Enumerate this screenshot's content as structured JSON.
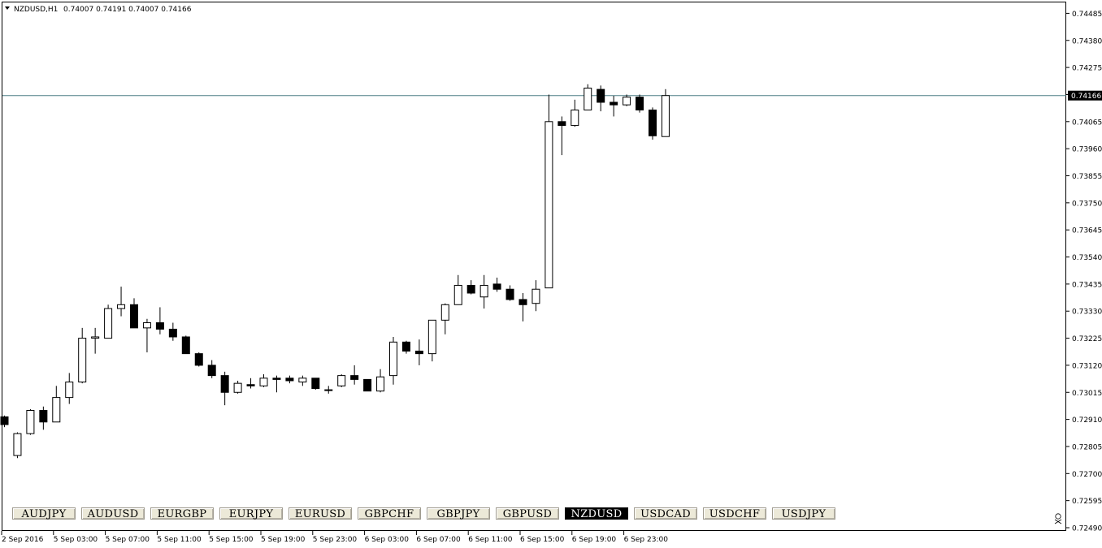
{
  "chart_header": {
    "symbol_timeframe": "NZDUSD,H1",
    "ohlc": "0.74007 0.74191 0.74007 0.74166"
  },
  "current_price_label": "0.74166",
  "symbol_buttons": [
    {
      "label": "AUDJPY",
      "active": false
    },
    {
      "label": "AUDUSD",
      "active": false
    },
    {
      "label": "EURGBP",
      "active": false
    },
    {
      "label": "EURJPY",
      "active": false
    },
    {
      "label": "EURUSD",
      "active": false
    },
    {
      "label": "GBPCHF",
      "active": false
    },
    {
      "label": "GBPJPY",
      "active": false
    },
    {
      "label": "GBPUSD",
      "active": false
    },
    {
      "label": "NZDUSD",
      "active": true
    },
    {
      "label": "USDCAD",
      "active": false
    },
    {
      "label": "USDCHF",
      "active": false
    },
    {
      "label": "USDJPY",
      "active": false
    }
  ],
  "colors": {
    "bull_fill": "#ffffff",
    "bear_fill": "#000000",
    "outline": "#000000",
    "price_line": "#4f7f86",
    "active_button": "#000000",
    "button_bg": "#ece9d8"
  },
  "chart_data": {
    "type": "candlestick",
    "title": "NZDUSD,H1",
    "grid": false,
    "current_price": 0.74166,
    "ylim": [
      0.7249,
      0.7454
    ],
    "y_ticks": [
      0.74485,
      0.7438,
      0.74275,
      0.7417,
      0.74065,
      0.7396,
      0.73855,
      0.7375,
      0.73645,
      0.7354,
      0.73435,
      0.7333,
      0.73225,
      0.7312,
      0.73015,
      0.7291,
      0.72805,
      0.727,
      0.72595,
      0.7249
    ],
    "y_tick_labels": [
      "0.74485",
      "0.74380",
      "0.74275",
      "0.74170",
      "0.74065",
      "0.73960",
      "0.73855",
      "0.73750",
      "0.73645",
      "0.73540",
      "0.73435",
      "0.73330",
      "0.73225",
      "0.73120",
      "0.73015",
      "0.72910",
      "0.72805",
      "0.72700",
      "0.72595",
      "0.72490"
    ],
    "x_tick_labels": [
      {
        "bar": 0,
        "label": "2 Sep 2016"
      },
      {
        "bar": 4,
        "label": "5 Sep 03:00"
      },
      {
        "bar": 8,
        "label": "5 Sep 07:00"
      },
      {
        "bar": 12,
        "label": "5 Sep 11:00"
      },
      {
        "bar": 16,
        "label": "5 Sep 15:00"
      },
      {
        "bar": 20,
        "label": "5 Sep 19:00"
      },
      {
        "bar": 24,
        "label": "5 Sep 23:00"
      },
      {
        "bar": 28,
        "label": "6 Sep 03:00"
      },
      {
        "bar": 32,
        "label": "6 Sep 07:00"
      },
      {
        "bar": 36,
        "label": "6 Sep 11:00"
      },
      {
        "bar": 40,
        "label": "6 Sep 15:00"
      },
      {
        "bar": 44,
        "label": "6 Sep 19:00"
      },
      {
        "bar": 48,
        "label": "6 Sep 23:00"
      }
    ],
    "candles": [
      {
        "o": 0.7292,
        "h": 0.72925,
        "l": 0.7288,
        "c": 0.7289
      },
      {
        "o": 0.7277,
        "h": 0.7286,
        "l": 0.7276,
        "c": 0.72855
      },
      {
        "o": 0.72855,
        "h": 0.7295,
        "l": 0.7285,
        "c": 0.72945
      },
      {
        "o": 0.72945,
        "h": 0.7296,
        "l": 0.7287,
        "c": 0.729
      },
      {
        "o": 0.729,
        "h": 0.7304,
        "l": 0.729,
        "c": 0.72995
      },
      {
        "o": 0.72995,
        "h": 0.7309,
        "l": 0.7297,
        "c": 0.73055
      },
      {
        "o": 0.73055,
        "h": 0.73265,
        "l": 0.7305,
        "c": 0.73225
      },
      {
        "o": 0.73225,
        "h": 0.73265,
        "l": 0.73165,
        "c": 0.7323
      },
      {
        "o": 0.73225,
        "h": 0.73355,
        "l": 0.73225,
        "c": 0.7334
      },
      {
        "o": 0.7334,
        "h": 0.73425,
        "l": 0.7331,
        "c": 0.73355
      },
      {
        "o": 0.73355,
        "h": 0.7338,
        "l": 0.73265,
        "c": 0.73265
      },
      {
        "o": 0.73265,
        "h": 0.733,
        "l": 0.7317,
        "c": 0.73285
      },
      {
        "o": 0.73285,
        "h": 0.73345,
        "l": 0.7324,
        "c": 0.7326
      },
      {
        "o": 0.7326,
        "h": 0.73285,
        "l": 0.73215,
        "c": 0.7323
      },
      {
        "o": 0.7323,
        "h": 0.73235,
        "l": 0.73165,
        "c": 0.73165
      },
      {
        "o": 0.73165,
        "h": 0.7317,
        "l": 0.73115,
        "c": 0.7312
      },
      {
        "o": 0.7312,
        "h": 0.7314,
        "l": 0.7307,
        "c": 0.7308
      },
      {
        "o": 0.7308,
        "h": 0.73095,
        "l": 0.72965,
        "c": 0.73015
      },
      {
        "o": 0.73015,
        "h": 0.7306,
        "l": 0.7301,
        "c": 0.7305
      },
      {
        "o": 0.73045,
        "h": 0.7307,
        "l": 0.7303,
        "c": 0.7304
      },
      {
        "o": 0.7304,
        "h": 0.73085,
        "l": 0.73035,
        "c": 0.7307
      },
      {
        "o": 0.7307,
        "h": 0.7308,
        "l": 0.73015,
        "c": 0.73065
      },
      {
        "o": 0.7307,
        "h": 0.7308,
        "l": 0.7305,
        "c": 0.7306
      },
      {
        "o": 0.73055,
        "h": 0.7308,
        "l": 0.7304,
        "c": 0.7307
      },
      {
        "o": 0.7307,
        "h": 0.7307,
        "l": 0.73025,
        "c": 0.7303
      },
      {
        "o": 0.73025,
        "h": 0.7304,
        "l": 0.7301,
        "c": 0.73025
      },
      {
        "o": 0.7304,
        "h": 0.73085,
        "l": 0.73035,
        "c": 0.7308
      },
      {
        "o": 0.7308,
        "h": 0.7312,
        "l": 0.73045,
        "c": 0.73065
      },
      {
        "o": 0.73065,
        "h": 0.73065,
        "l": 0.7302,
        "c": 0.7302
      },
      {
        "o": 0.7302,
        "h": 0.73105,
        "l": 0.73015,
        "c": 0.73075
      },
      {
        "o": 0.7308,
        "h": 0.7323,
        "l": 0.73045,
        "c": 0.7321
      },
      {
        "o": 0.7321,
        "h": 0.73215,
        "l": 0.73165,
        "c": 0.73175
      },
      {
        "o": 0.73175,
        "h": 0.7322,
        "l": 0.7312,
        "c": 0.73165
      },
      {
        "o": 0.73165,
        "h": 0.73295,
        "l": 0.73135,
        "c": 0.73295
      },
      {
        "o": 0.73295,
        "h": 0.7336,
        "l": 0.7324,
        "c": 0.73355
      },
      {
        "o": 0.73355,
        "h": 0.7347,
        "l": 0.73355,
        "c": 0.7343
      },
      {
        "o": 0.7343,
        "h": 0.7345,
        "l": 0.73395,
        "c": 0.734
      },
      {
        "o": 0.73385,
        "h": 0.7347,
        "l": 0.7334,
        "c": 0.7343
      },
      {
        "o": 0.73435,
        "h": 0.7346,
        "l": 0.73405,
        "c": 0.73415
      },
      {
        "o": 0.73415,
        "h": 0.7343,
        "l": 0.7337,
        "c": 0.73375
      },
      {
        "o": 0.73375,
        "h": 0.734,
        "l": 0.7329,
        "c": 0.73355
      },
      {
        "o": 0.7336,
        "h": 0.7345,
        "l": 0.7333,
        "c": 0.73415
      },
      {
        "o": 0.7342,
        "h": 0.7417,
        "l": 0.7342,
        "c": 0.74065
      },
      {
        "o": 0.74065,
        "h": 0.74085,
        "l": 0.73935,
        "c": 0.7405
      },
      {
        "o": 0.7405,
        "h": 0.7415,
        "l": 0.74045,
        "c": 0.7411
      },
      {
        "o": 0.7411,
        "h": 0.7421,
        "l": 0.7411,
        "c": 0.74195
      },
      {
        "o": 0.7419,
        "h": 0.74205,
        "l": 0.74105,
        "c": 0.7414
      },
      {
        "o": 0.7414,
        "h": 0.74165,
        "l": 0.74085,
        "c": 0.7413
      },
      {
        "o": 0.7413,
        "h": 0.7417,
        "l": 0.74125,
        "c": 0.7416
      },
      {
        "o": 0.7416,
        "h": 0.7417,
        "l": 0.741,
        "c": 0.7411
      },
      {
        "o": 0.7411,
        "h": 0.7412,
        "l": 0.73995,
        "c": 0.7401
      },
      {
        "o": 0.74007,
        "h": 0.74191,
        "l": 0.74007,
        "c": 0.74166
      }
    ]
  }
}
